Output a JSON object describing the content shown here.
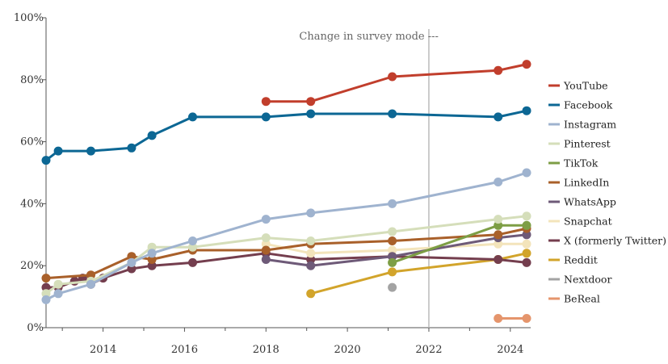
{
  "chart_data": {
    "type": "line",
    "title": "",
    "xlabel": "",
    "ylabel": "",
    "xlim": [
      2012.6,
      2024.5
    ],
    "ylim": [
      0,
      100
    ],
    "x_ticks": [
      2014,
      2016,
      2018,
      2020,
      2022,
      2024
    ],
    "x_tick_labels": [
      "2014",
      "2016",
      "2018",
      "2020",
      "2022",
      "2024"
    ],
    "y_ticks": [
      0,
      20,
      40,
      60,
      80,
      100
    ],
    "y_tick_labels": [
      "0%",
      "20%",
      "40%",
      "60%",
      "80%",
      "100%"
    ],
    "grid": false,
    "legend_position": "right",
    "annotations": [
      {
        "text": "Change in survey mode ---",
        "x": 2022
      }
    ],
    "reference_lines": [
      {
        "x": 2022,
        "label": "Change in survey mode"
      }
    ],
    "series": [
      {
        "name": "YouTube",
        "color": "#c13e2c",
        "points": [
          [
            2018.0,
            73
          ],
          [
            2019.1,
            73
          ],
          [
            2021.1,
            81
          ],
          [
            2023.7,
            83
          ],
          [
            2024.4,
            85
          ]
        ]
      },
      {
        "name": "Facebook",
        "color": "#0c6794",
        "points": [
          [
            2012.6,
            54
          ],
          [
            2012.9,
            57
          ],
          [
            2013.7,
            57
          ],
          [
            2014.7,
            58
          ],
          [
            2015.2,
            62
          ],
          [
            2016.2,
            68
          ],
          [
            2018.0,
            68
          ],
          [
            2019.1,
            69
          ],
          [
            2021.1,
            69
          ],
          [
            2023.7,
            68
          ],
          [
            2024.4,
            70
          ]
        ]
      },
      {
        "name": "Instagram",
        "color": "#9fb3cf",
        "points": [
          [
            2012.6,
            9
          ],
          [
            2012.9,
            11
          ],
          [
            2013.7,
            14
          ],
          [
            2014.7,
            21
          ],
          [
            2015.2,
            24
          ],
          [
            2016.2,
            28
          ],
          [
            2018.0,
            35
          ],
          [
            2019.1,
            37
          ],
          [
            2021.1,
            40
          ],
          [
            2023.7,
            47
          ],
          [
            2024.4,
            50
          ]
        ]
      },
      {
        "name": "Pinterest",
        "color": "#d5deba",
        "points": [
          [
            2012.6,
            11
          ],
          [
            2012.9,
            14
          ],
          [
            2013.7,
            15
          ],
          [
            2014.7,
            21
          ],
          [
            2015.2,
            26
          ],
          [
            2016.2,
            26
          ],
          [
            2018.0,
            29
          ],
          [
            2019.1,
            28
          ],
          [
            2021.1,
            31
          ],
          [
            2023.7,
            35
          ],
          [
            2024.4,
            36
          ]
        ]
      },
      {
        "name": "TikTok",
        "color": "#7d9e45",
        "points": [
          [
            2021.1,
            21
          ],
          [
            2023.7,
            33
          ],
          [
            2024.4,
            33
          ]
        ]
      },
      {
        "name": "LinkedIn",
        "color": "#a9602a",
        "points": [
          [
            2012.6,
            16
          ],
          [
            2013.7,
            17
          ],
          [
            2014.7,
            23
          ],
          [
            2015.2,
            22
          ],
          [
            2016.2,
            25
          ],
          [
            2018.0,
            25
          ],
          [
            2019.1,
            27
          ],
          [
            2021.1,
            28
          ],
          [
            2023.7,
            30
          ],
          [
            2024.4,
            32
          ]
        ]
      },
      {
        "name": "WhatsApp",
        "color": "#6e5a78",
        "points": [
          [
            2018.0,
            22
          ],
          [
            2019.1,
            20
          ],
          [
            2021.1,
            23
          ],
          [
            2023.7,
            29
          ],
          [
            2024.4,
            30
          ]
        ]
      },
      {
        "name": "Snapchat",
        "color": "#f3e4bb",
        "points": [
          [
            2018.0,
            27
          ],
          [
            2019.1,
            24
          ],
          [
            2021.1,
            25
          ],
          [
            2023.7,
            27
          ],
          [
            2024.4,
            27
          ]
        ]
      },
      {
        "name": "X (formerly Twitter)",
        "color": "#743e4e",
        "points": [
          [
            2012.6,
            13
          ],
          [
            2012.9,
            13
          ],
          [
            2013.3,
            15
          ],
          [
            2013.5,
            16
          ],
          [
            2013.7,
            14
          ],
          [
            2014.0,
            16
          ],
          [
            2014.7,
            19
          ],
          [
            2015.2,
            20
          ],
          [
            2016.2,
            21
          ],
          [
            2018.0,
            24
          ],
          [
            2019.1,
            22
          ],
          [
            2021.1,
            23
          ],
          [
            2023.7,
            22
          ],
          [
            2024.4,
            21
          ]
        ]
      },
      {
        "name": "Reddit",
        "color": "#d2a42b",
        "points": [
          [
            2019.1,
            11
          ],
          [
            2021.1,
            18
          ],
          [
            2023.7,
            22
          ],
          [
            2024.4,
            24
          ]
        ]
      },
      {
        "name": "Nextdoor",
        "color": "#a3a3a3",
        "points": [
          [
            2021.1,
            13
          ]
        ]
      },
      {
        "name": "BeReal",
        "color": "#e5956c",
        "points": [
          [
            2023.7,
            3
          ],
          [
            2024.4,
            3
          ]
        ]
      }
    ]
  }
}
